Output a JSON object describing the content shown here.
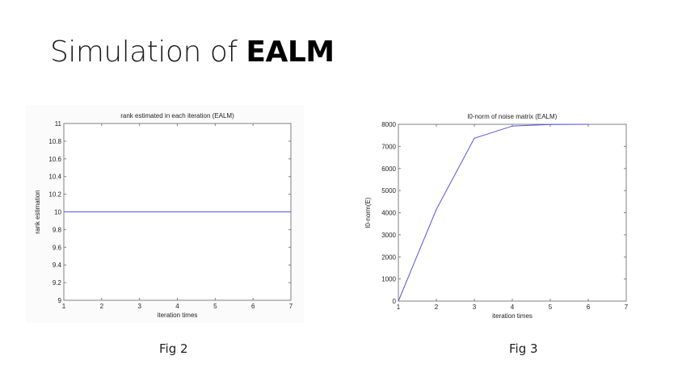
{
  "slide": {
    "title_prefix": "Simulation of ",
    "title_emphasis": "EALM"
  },
  "captions": {
    "left": "Fig 2",
    "right": "Fig 3"
  },
  "colors": {
    "line": "#5555dd",
    "axis": "#808080",
    "figure_bg_left": "#fbfbfb"
  },
  "chart_data": [
    {
      "type": "line",
      "title": "rank estimated in each iteration (EALM)",
      "xlabel": "iteration times",
      "ylabel": "rank estimation",
      "x": [
        1,
        2,
        3,
        4,
        5,
        6,
        7
      ],
      "series": [
        {
          "name": "rank",
          "values": [
            10,
            10,
            10,
            10,
            10,
            10,
            10
          ]
        }
      ],
      "xlim": [
        1,
        7
      ],
      "ylim": [
        9,
        11
      ],
      "xticks": [
        "1",
        "2",
        "3",
        "4",
        "5",
        "6",
        "7"
      ],
      "yticks": [
        "9",
        "9.2",
        "9.4",
        "9.6",
        "9.8",
        "10",
        "10.2",
        "10.4",
        "10.6",
        "10.8",
        "11"
      ],
      "grid": false,
      "legend": null
    },
    {
      "type": "line",
      "title": "l0-norm of noise matrix (EALM)",
      "xlabel": "iteration times",
      "ylabel": "l0-norm(E)",
      "x": [
        1,
        2,
        3,
        4,
        5,
        6
      ],
      "series": [
        {
          "name": "l0-norm(E)",
          "values": [
            0,
            4150,
            7370,
            7920,
            7990,
            8000
          ]
        }
      ],
      "xlim": [
        1,
        7
      ],
      "ylim": [
        0,
        8000
      ],
      "xticks": [
        "1",
        "2",
        "3",
        "4",
        "5",
        "6",
        "7"
      ],
      "yticks": [
        "0",
        "1000",
        "2000",
        "3000",
        "4000",
        "5000",
        "6000",
        "7000",
        "8000"
      ],
      "grid": false,
      "legend": null
    }
  ]
}
